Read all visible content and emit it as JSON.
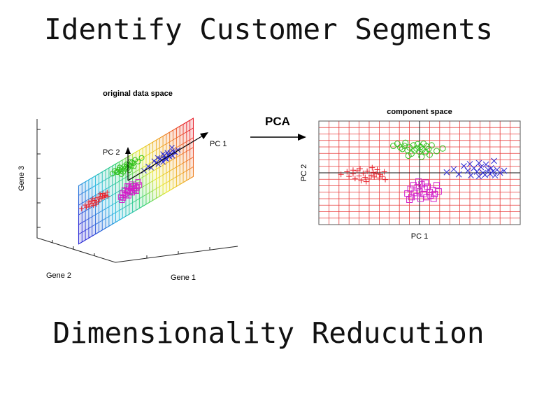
{
  "slide": {
    "title": "Identify Customer Segments",
    "subtitle": "Dimensionality Reducution"
  },
  "arrow_label": "PCA",
  "left_panel": {
    "title": "original data space",
    "axis_labels": {
      "x": "Gene 1",
      "y": "Gene 2",
      "z": "Gene 3"
    },
    "vector_labels": {
      "pc1": "PC 1",
      "pc2": "PC 2"
    }
  },
  "right_panel": {
    "title": "component space",
    "xlabel": "PC 1",
    "ylabel": "PC 2"
  },
  "colors": {
    "red": "#e8202a",
    "green": "#33c21f",
    "magenta": "#d21fc8",
    "blue": "#2b2bd6",
    "grid": "#e83a3a",
    "text": "#111111"
  },
  "chart_data": {
    "type": "scatter",
    "title": "component space",
    "xlabel": "PC 1",
    "ylabel": "PC 2",
    "xlim": [
      -1,
      1
    ],
    "ylim": [
      -1,
      1
    ],
    "grid": true,
    "series": [
      {
        "marker": "plus",
        "color": "#e8202a",
        "points": [
          [
            -0.78,
            -0.03
          ],
          [
            -0.72,
            0.02
          ],
          [
            -0.7,
            -0.07
          ],
          [
            -0.66,
            -0.02
          ],
          [
            -0.64,
            -0.11
          ],
          [
            -0.62,
            0.04
          ],
          [
            -0.6,
            -0.06
          ],
          [
            -0.58,
            -0.15
          ],
          [
            -0.56,
            -0.01
          ],
          [
            -0.54,
            -0.09
          ],
          [
            -0.52,
            0.03
          ],
          [
            -0.5,
            -0.12
          ],
          [
            -0.48,
            -0.05
          ],
          [
            -0.46,
            0.01
          ],
          [
            -0.45,
            -0.08
          ],
          [
            -0.43,
            -0.02
          ],
          [
            -0.42,
            0.06
          ],
          [
            -0.4,
            -0.1
          ],
          [
            -0.39,
            -0.03
          ],
          [
            -0.37,
            -0.07
          ],
          [
            -0.35,
            0.02
          ],
          [
            -0.34,
            -0.13
          ],
          [
            -0.47,
            0.1
          ],
          [
            -0.59,
            0.08
          ],
          [
            -0.66,
            0.05
          ],
          [
            -0.53,
            -0.17
          ]
        ]
      },
      {
        "marker": "circle",
        "color": "#33c21f",
        "points": [
          [
            -0.26,
            0.52
          ],
          [
            -0.22,
            0.56
          ],
          [
            -0.19,
            0.49
          ],
          [
            -0.17,
            0.46
          ],
          [
            -0.15,
            0.52
          ],
          [
            -0.14,
            0.58
          ],
          [
            -0.12,
            0.44
          ],
          [
            -0.1,
            0.49
          ],
          [
            -0.08,
            0.37
          ],
          [
            -0.06,
            0.53
          ],
          [
            -0.05,
            0.43
          ],
          [
            -0.03,
            0.47
          ],
          [
            -0.02,
            0.55
          ],
          [
            0.0,
            0.41
          ],
          [
            0.01,
            0.5
          ],
          [
            0.03,
            0.45
          ],
          [
            0.04,
            0.56
          ],
          [
            0.06,
            0.4
          ],
          [
            0.07,
            0.51
          ],
          [
            0.09,
            0.46
          ],
          [
            0.1,
            0.35
          ],
          [
            0.12,
            0.53
          ],
          [
            0.17,
            0.42
          ],
          [
            0.23,
            0.47
          ],
          [
            -0.11,
            0.33
          ],
          [
            0.02,
            0.31
          ]
        ]
      },
      {
        "marker": "square",
        "color": "#d21fc8",
        "points": [
          [
            -0.12,
            -0.4
          ],
          [
            -0.09,
            -0.31
          ],
          [
            -0.08,
            -0.47
          ],
          [
            -0.06,
            -0.24
          ],
          [
            -0.05,
            -0.39
          ],
          [
            -0.03,
            -0.45
          ],
          [
            -0.02,
            -0.28
          ],
          [
            0.0,
            -0.36
          ],
          [
            0.01,
            -0.5
          ],
          [
            0.02,
            -0.22
          ],
          [
            0.04,
            -0.41
          ],
          [
            0.05,
            -0.31
          ],
          [
            0.07,
            -0.47
          ],
          [
            0.08,
            -0.27
          ],
          [
            0.1,
            -0.37
          ],
          [
            0.11,
            -0.44
          ],
          [
            0.13,
            -0.33
          ],
          [
            0.15,
            -0.41
          ],
          [
            0.17,
            -0.24
          ],
          [
            0.19,
            -0.36
          ],
          [
            -0.01,
            -0.17
          ],
          [
            0.06,
            -0.19
          ],
          [
            -0.1,
            -0.52
          ],
          [
            0.14,
            -0.5
          ]
        ]
      },
      {
        "marker": "cross",
        "color": "#2b2bd6",
        "points": [
          [
            0.27,
            0.01
          ],
          [
            0.34,
            0.07
          ],
          [
            0.39,
            -0.03
          ],
          [
            0.44,
            0.13
          ],
          [
            0.48,
            0.04
          ],
          [
            0.51,
            -0.05
          ],
          [
            0.54,
            0.09
          ],
          [
            0.57,
            0.02
          ],
          [
            0.59,
            -0.07
          ],
          [
            0.61,
            0.11
          ],
          [
            0.63,
            0.0
          ],
          [
            0.65,
            -0.04
          ],
          [
            0.66,
            0.16
          ],
          [
            0.68,
            0.06
          ],
          [
            0.7,
            -0.02
          ],
          [
            0.71,
            0.09
          ],
          [
            0.73,
            0.03
          ],
          [
            0.75,
            -0.05
          ],
          [
            0.77,
            0.06
          ],
          [
            0.8,
            0.0
          ],
          [
            0.84,
            0.04
          ],
          [
            0.59,
            0.19
          ],
          [
            0.74,
            0.23
          ],
          [
            0.5,
            0.17
          ]
        ]
      }
    ]
  }
}
